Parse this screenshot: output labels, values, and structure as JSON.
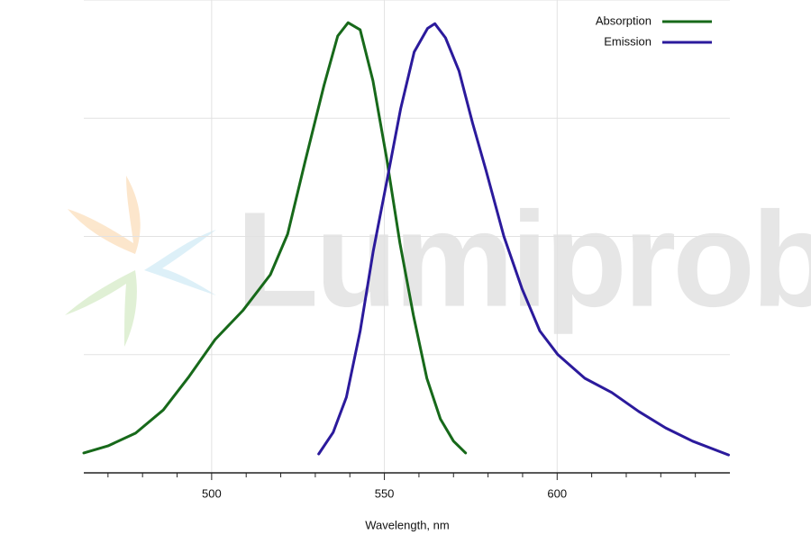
{
  "chart_data": {
    "type": "line",
    "x_label": "Wavelength, nm",
    "watermark": "Lumiprobe",
    "xlim": [
      463,
      650
    ],
    "xticks": [
      500,
      550,
      600
    ],
    "xminorticks": [
      470,
      480,
      490,
      510,
      520,
      530,
      540,
      560,
      570,
      580,
      590,
      610,
      620,
      630,
      640
    ],
    "ylim": [
      0,
      1
    ],
    "yticks": [
      0,
      0.25,
      0.5,
      0.75,
      1
    ],
    "grid": true,
    "legend": "top-right",
    "series": [
      {
        "name": "Absorption",
        "color": "#17691a",
        "x": [
          463,
          470,
          478,
          486,
          493.5,
          501,
          509,
          517,
          522,
          527,
          532.5,
          536.5,
          539.5,
          543,
          546.7,
          550.6,
          554.5,
          558.4,
          562.3,
          566.2,
          570,
          573.5
        ],
        "values": [
          0.042,
          0.057,
          0.084,
          0.133,
          0.204,
          0.282,
          0.343,
          0.419,
          0.505,
          0.657,
          0.819,
          0.924,
          0.952,
          0.937,
          0.829,
          0.667,
          0.486,
          0.333,
          0.2,
          0.114,
          0.067,
          0.042
        ]
      },
      {
        "name": "Emission",
        "color": "#2b1a9c",
        "x": [
          531,
          535.2,
          539,
          543,
          546.8,
          550.8,
          554.7,
          558.6,
          562.5,
          564.6,
          567.7,
          571.6,
          575.5,
          579.4,
          584.6,
          589.8,
          595,
          600.2,
          608,
          615.8,
          623.6,
          631.4,
          639.2,
          649.6
        ],
        "values": [
          0.04,
          0.086,
          0.16,
          0.3,
          0.47,
          0.62,
          0.77,
          0.89,
          0.94,
          0.95,
          0.92,
          0.85,
          0.74,
          0.64,
          0.5,
          0.39,
          0.3,
          0.25,
          0.2,
          0.17,
          0.13,
          0.095,
          0.067,
          0.038
        ]
      }
    ]
  }
}
